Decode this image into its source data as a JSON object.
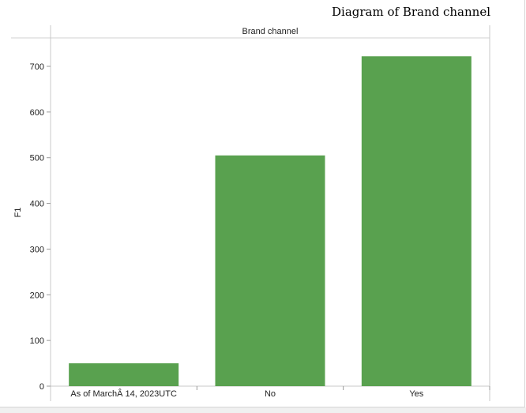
{
  "chart_data": {
    "type": "bar",
    "title": "Diagram of Brand channel",
    "panel_title": "Brand channel",
    "ylabel": "F1",
    "xlabel": "",
    "categories": [
      "As of MarchÂ 14, 2023UTC",
      "No",
      "Yes"
    ],
    "values": [
      50,
      505,
      722
    ],
    "ylim": [
      0,
      750
    ],
    "yticks": [
      0,
      100,
      200,
      300,
      400,
      500,
      600,
      700
    ],
    "bar_color": "#59a14f",
    "grid": false
  }
}
